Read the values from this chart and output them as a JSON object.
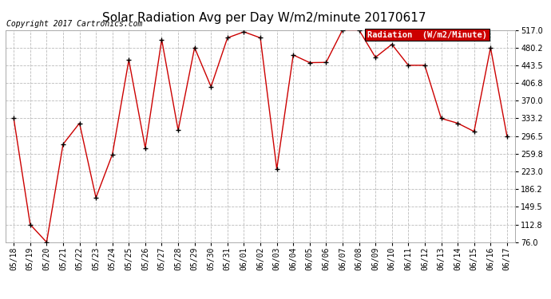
{
  "title": "Solar Radiation Avg per Day W/m2/minute 20170617",
  "copyright": "Copyright 2017 Cartronics.com",
  "legend_label": "Radiation  (W/m2/Minute)",
  "dates": [
    "05/18",
    "05/19",
    "05/20",
    "05/21",
    "05/22",
    "05/23",
    "05/24",
    "05/25",
    "05/26",
    "05/27",
    "05/28",
    "05/29",
    "05/30",
    "05/31",
    "06/01",
    "06/02",
    "06/03",
    "06/04",
    "06/05",
    "06/06",
    "06/07",
    "06/08",
    "06/09",
    "06/10",
    "06/11",
    "06/12",
    "06/13",
    "06/14",
    "06/15",
    "06/16",
    "06/17"
  ],
  "values": [
    333.2,
    112.8,
    76.0,
    279.5,
    323.2,
    168.5,
    258.5,
    454.5,
    271.5,
    497.0,
    308.5,
    480.2,
    399.0,
    500.5,
    513.0,
    500.5,
    228.0,
    465.0,
    449.0,
    449.5,
    517.0,
    517.0,
    460.0,
    487.0,
    443.5,
    443.5,
    333.2,
    323.2,
    306.0,
    480.2,
    296.5
  ],
  "ymin": 76.0,
  "ymax": 517.0,
  "yticks": [
    76.0,
    112.8,
    149.5,
    186.2,
    223.0,
    259.8,
    296.5,
    333.2,
    370.0,
    406.8,
    443.5,
    480.2,
    517.0
  ],
  "line_color": "#cc0000",
  "marker_color": "#000000",
  "bg_color": "#ffffff",
  "grid_color": "#bbbbbb",
  "legend_bg": "#cc0000",
  "legend_text_color": "#ffffff",
  "title_fontsize": 11,
  "copyright_fontsize": 7,
  "tick_fontsize": 7,
  "legend_fontsize": 7.5
}
